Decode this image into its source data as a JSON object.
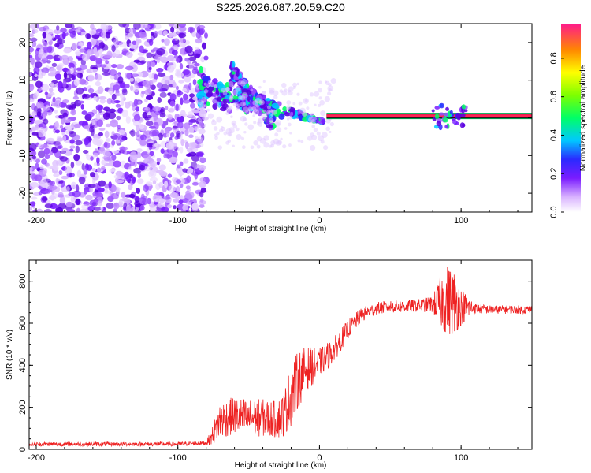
{
  "title": "S225.2026.087.20.59.C20",
  "colors": {
    "snr_line": "#ee2222",
    "spectro_scatter": "#8a2be2",
    "carrier_band": "#ff2255",
    "carrier_edge": "#00aa55",
    "background": "#ffffff"
  },
  "chart_data": [
    {
      "type": "heatmap",
      "name": "spectrogram",
      "xlabel": "Height of straight line (km)",
      "ylabel": "Frequency (Hz)",
      "xlim": [
        -205,
        150
      ],
      "ylim": [
        -25,
        25
      ],
      "xticks": [
        -200,
        -100,
        0,
        100
      ],
      "yticks": [
        -20,
        -10,
        0,
        10,
        20
      ],
      "colorbar": {
        "label": "Normalized spectral amplitude",
        "range": [
          0.0,
          0.98
        ],
        "ticks": [
          0.0,
          0.2,
          0.4,
          0.6,
          0.8
        ]
      },
      "features": {
        "noise_region_km": [
          -205,
          -85
        ],
        "transition_region_km": [
          -85,
          5
        ],
        "carrier_region_km": [
          5,
          150
        ],
        "carrier_frequency_hz": 0.5
      }
    },
    {
      "type": "line",
      "name": "snr",
      "xlabel": "Height of straight line (km)",
      "ylabel": "SNR (10 * v/v)",
      "xlim": [
        -205,
        150
      ],
      "ylim": [
        0,
        900
      ],
      "xticks": [
        -200,
        -100,
        0,
        100
      ],
      "yticks": [
        0,
        200,
        400,
        600,
        800
      ],
      "series": [
        {
          "name": "SNR",
          "x": [
            -205,
            -150,
            -100,
            -80,
            -76,
            -70,
            -60,
            -50,
            -40,
            -30,
            -25,
            -20,
            -15,
            -10,
            0,
            10,
            20,
            30,
            40,
            50,
            60,
            70,
            80,
            85,
            90,
            95,
            100,
            110,
            120,
            130,
            140,
            150
          ],
          "y": [
            25,
            25,
            25,
            30,
            60,
            140,
            160,
            150,
            150,
            140,
            170,
            260,
            330,
            380,
            410,
            470,
            570,
            640,
            670,
            680,
            680,
            685,
            690,
            700,
            710,
            700,
            680,
            670,
            665,
            665,
            665,
            665
          ],
          "noise_amplitude": [
            10,
            10,
            10,
            10,
            40,
            90,
            90,
            90,
            90,
            90,
            110,
            150,
            140,
            110,
            70,
            60,
            45,
            35,
            30,
            30,
            30,
            30,
            40,
            120,
            170,
            160,
            90,
            25,
            20,
            20,
            20,
            20
          ]
        }
      ]
    }
  ]
}
